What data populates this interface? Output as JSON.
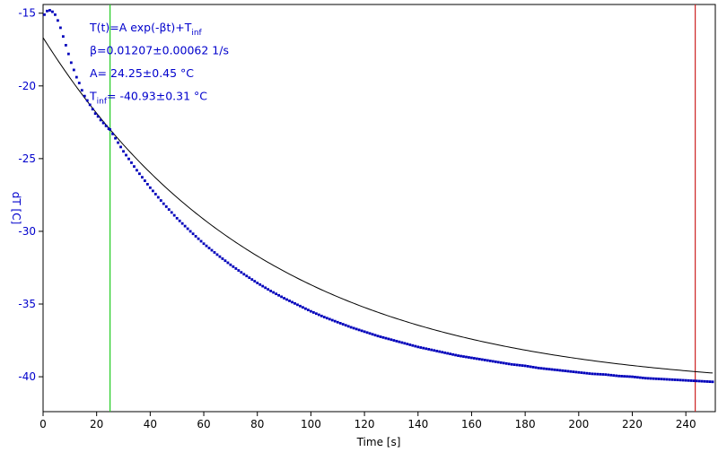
{
  "chart_data": {
    "type": "scatter",
    "xlabel": "Time [s]",
    "ylabel": "dT [C]",
    "xlim": [
      0,
      251
    ],
    "ylim": [
      -42.4,
      -14.4
    ],
    "xticks": [
      0,
      20,
      40,
      60,
      80,
      100,
      120,
      140,
      160,
      180,
      200,
      220,
      240
    ],
    "yticks": [
      -15,
      -20,
      -25,
      -30,
      -35,
      -40
    ],
    "grid": false,
    "colors": {
      "data": "#0000bb",
      "fit": "#000000",
      "axis_text": "#0000cc",
      "cursor_start": "#22cc22",
      "cursor_end": "#cc2222"
    },
    "annotations": [
      {
        "main": "T(t)=A exp(-βt)+T",
        "sub": "inf",
        "tail": ""
      },
      {
        "main": "β=0.01207±0.00062 1/s",
        "sub": "",
        "tail": ""
      },
      {
        "main": "A= 24.25±0.45 °C",
        "sub": "",
        "tail": ""
      },
      {
        "main": "T",
        "sub": "inf",
        "tail": "= -40.93±0.31 °C"
      }
    ],
    "fit": {
      "A": 24.25,
      "beta": 0.01207,
      "T_inf": -40.93
    },
    "cursors": [
      {
        "name": "start",
        "x": 25
      },
      {
        "name": "end",
        "x": 243.5
      }
    ],
    "series": [
      {
        "x": [
          0.5,
          1.5,
          2.5,
          3.5,
          4.5,
          5.5,
          6.5,
          7.5,
          8.5,
          9.5,
          10.5,
          11.5,
          12.5,
          13.5,
          14.5,
          15.5,
          16.5,
          17.5,
          18.5,
          19.5,
          20.5,
          21.5,
          22.5,
          23.5,
          24.5,
          25,
          30,
          35,
          40,
          45,
          50,
          55,
          60,
          65,
          70,
          75,
          80,
          85,
          90,
          95,
          100,
          105,
          110,
          115,
          120,
          125,
          130,
          135,
          140,
          145,
          150,
          155,
          160,
          165,
          170,
          175,
          180,
          185,
          190,
          195,
          200,
          205,
          210,
          215,
          220,
          225,
          230,
          235,
          240,
          245,
          250
        ],
        "y": [
          -15.1,
          -14.85,
          -14.8,
          -14.9,
          -15.1,
          -15.5,
          -16.0,
          -16.6,
          -17.2,
          -17.8,
          -18.4,
          -18.9,
          -19.4,
          -19.8,
          -20.3,
          -20.7,
          -21.0,
          -21.3,
          -21.6,
          -21.9,
          -22.1,
          -22.35,
          -22.55,
          -22.75,
          -22.95,
          -23.0,
          -24.5,
          -25.8,
          -27.0,
          -28.1,
          -29.1,
          -30.0,
          -30.85,
          -31.6,
          -32.3,
          -32.95,
          -33.55,
          -34.1,
          -34.6,
          -35.05,
          -35.5,
          -35.9,
          -36.25,
          -36.6,
          -36.9,
          -37.2,
          -37.45,
          -37.7,
          -37.95,
          -38.15,
          -38.35,
          -38.55,
          -38.7,
          -38.85,
          -39.0,
          -39.15,
          -39.25,
          -39.4,
          -39.5,
          -39.6,
          -39.7,
          -39.8,
          -39.85,
          -39.95,
          -40.0,
          -40.1,
          -40.15,
          -40.2,
          -40.25,
          -40.3,
          -40.35
        ]
      }
    ]
  }
}
